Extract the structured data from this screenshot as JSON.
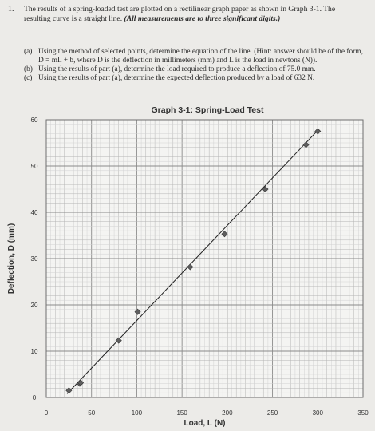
{
  "problem": {
    "number": "1.",
    "intro": "The results of a spring-loaded test are plotted on a rectilinear graph paper as shown in Graph 3-1. The resulting curve is a straight line.",
    "emphasis": "(All measurements are to three significant digits.)",
    "parts": [
      {
        "label": "(a)",
        "text": "Using the method of selected points, determine the equation of the line. (Hint: answer should be of the form, D = mL + b, where D is the deflection in millimeters (mm) and L is the load in newtons (N))."
      },
      {
        "label": "(b)",
        "text": "Using the results of part (a), determine the load required to produce a deflection of 75.0 mm."
      },
      {
        "label": "(c)",
        "text": "Using the results of part (a), determine the expected deflection produced by a load of 632 N."
      }
    ]
  },
  "chart_data": {
    "type": "scatter",
    "title": "Graph 3-1: Spring-Load Test",
    "xlabel": "Load, L (N)",
    "ylabel": "Deflection, D (mm)",
    "xlim": [
      0,
      350
    ],
    "ylim": [
      0,
      60
    ],
    "xticks": [
      0,
      50,
      100,
      150,
      200,
      250,
      300,
      350
    ],
    "yticks": [
      0,
      10,
      20,
      30,
      40,
      50,
      60
    ],
    "grid": true,
    "points": [
      {
        "x": 25,
        "y": 1.5
      },
      {
        "x": 37,
        "y": 3
      },
      {
        "x": 38,
        "y": 3.2
      },
      {
        "x": 80,
        "y": 12.3
      },
      {
        "x": 101,
        "y": 18.5
      },
      {
        "x": 159,
        "y": 28.2
      },
      {
        "x": 197,
        "y": 35.3
      },
      {
        "x": 242,
        "y": 45
      },
      {
        "x": 287,
        "y": 54.6
      },
      {
        "x": 300,
        "y": 57.5
      }
    ],
    "fit_line": {
      "x": [
        23,
        300
      ],
      "y": [
        0.8,
        57.7
      ]
    }
  }
}
